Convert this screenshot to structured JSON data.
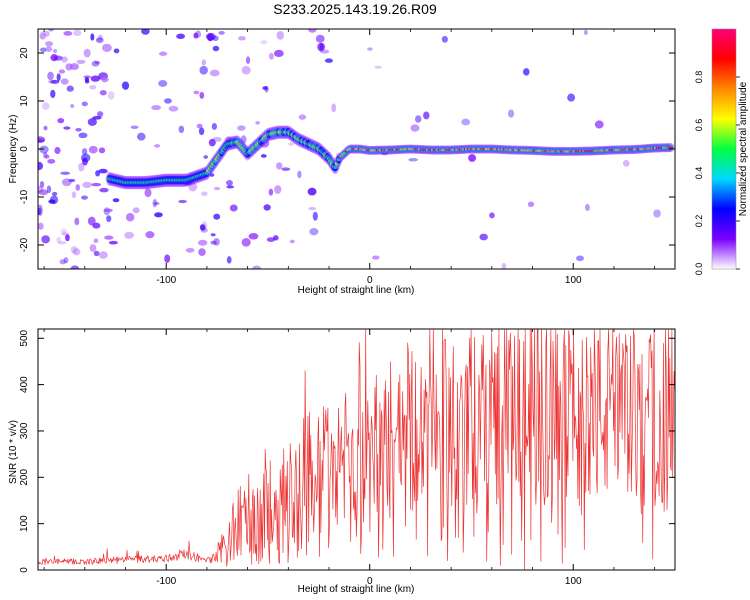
{
  "title": "S233.2025.143.19.26.R09",
  "colors": {
    "snr_line": "#ee3333",
    "axis": "#000000",
    "background": "#ffffff"
  },
  "chart_data": [
    {
      "type": "heatmap",
      "xlabel": "Height of straight line (km)",
      "ylabel": "Frequency (Hz)",
      "xlim": [
        -163,
        150
      ],
      "ylim": [
        -25,
        25
      ],
      "x_ticks": [
        -100,
        0,
        100
      ],
      "y_ticks": [
        -20,
        -10,
        0,
        10,
        20
      ],
      "colorbar": {
        "label": "Normalized spectral amplitude",
        "range": [
          0.0,
          1.0
        ],
        "ticks": [
          "0.0",
          "0.2",
          "0.4",
          "0.6",
          "0.8"
        ],
        "colormap": [
          "#ffffff",
          "#7a00ff",
          "#0000ff",
          "#00d8ff",
          "#00ff40",
          "#ffff00",
          "#ff8800",
          "#ff0000",
          "#ff0077"
        ]
      },
      "ridge": {
        "x": [
          -160,
          -150,
          -140,
          -130,
          -120,
          -110,
          -100,
          -90,
          -80,
          -75,
          -70,
          -65,
          -60,
          -55,
          -50,
          -45,
          -40,
          -35,
          -30,
          -25,
          -20,
          -17,
          -15,
          -10,
          -5,
          0,
          10,
          20,
          30,
          40,
          50,
          60,
          70,
          80,
          90,
          100,
          110,
          120,
          130,
          140,
          148
        ],
        "y": [
          -6,
          -6.5,
          -6,
          -6,
          -7,
          -7,
          -6.5,
          -6.5,
          -5,
          -2,
          1,
          1.5,
          -1,
          1,
          3,
          3.5,
          3.5,
          2,
          1,
          0,
          -2,
          -4,
          -2,
          0,
          0,
          -0.3,
          -0.2,
          0,
          -0.2,
          -0.2,
          0,
          0,
          -0.2,
          -0.3,
          -0.5,
          -0.5,
          -0.4,
          -0.2,
          -0.1,
          0.2,
          0.3
        ]
      }
    },
    {
      "type": "line",
      "xlabel": "Height of straight line (km)",
      "ylabel": "SNR (10 * v/v)",
      "xlim": [
        -163,
        150
      ],
      "ylim": [
        0,
        520
      ],
      "x_ticks": [
        -100,
        0,
        100
      ],
      "y_ticks": [
        0,
        100,
        200,
        300,
        400,
        500
      ],
      "series": [
        {
          "envelope_x": [
            -163,
            -140,
            -120,
            -100,
            -90,
            -80,
            -75,
            -70,
            -65,
            -60,
            -55,
            -50,
            -45,
            -40,
            -35,
            -30,
            -25,
            -20,
            -15,
            -10,
            -5,
            0,
            5,
            10,
            15,
            20,
            30,
            40,
            50,
            60,
            70,
            80,
            90,
            100,
            110,
            120,
            130,
            140,
            150
          ],
          "envelope_y": [
            18,
            18,
            22,
            25,
            35,
            20,
            30,
            50,
            95,
            110,
            100,
            120,
            140,
            150,
            170,
            200,
            180,
            210,
            250,
            220,
            210,
            250,
            270,
            290,
            300,
            320,
            330,
            335,
            340,
            345,
            350,
            350,
            345,
            340,
            345,
            340,
            335,
            335,
            340
          ]
        }
      ]
    }
  ]
}
